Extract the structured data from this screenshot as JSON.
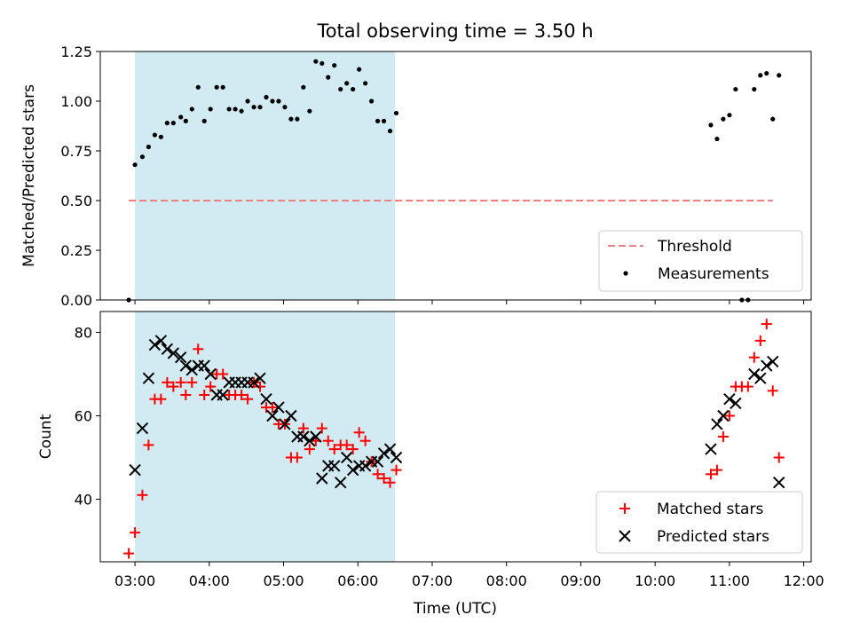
{
  "figure_title": "Total observing time = 3.50 h",
  "chart_data": [
    {
      "type": "scatter",
      "title": "Total observing time = 3.50 h",
      "xlabel": "",
      "ylabel": "Matched/Predicted stars",
      "x_ticklabels": [
        "03:00",
        "04:00",
        "05:00",
        "06:00",
        "07:00",
        "08:00",
        "09:00",
        "10:00",
        "11:00",
        "12:00"
      ],
      "y_ticks": [
        0.0,
        0.25,
        0.5,
        0.75,
        1.0,
        1.25
      ],
      "y_ticklabels": [
        "0.00",
        "0.25",
        "0.50",
        "0.75",
        "1.00",
        "1.25"
      ],
      "xlim": [
        "02:32",
        "12:06"
      ],
      "ylim": [
        0,
        1.25
      ],
      "shaded_span": {
        "start": "03:00",
        "end": "06:30",
        "color": "#add8e6"
      },
      "legend_position": "lower right",
      "threshold": {
        "name": "Threshold",
        "y": 0.5,
        "x_start": "02:55",
        "x_end": "11:35",
        "color": "#f08080",
        "style": "dashed"
      },
      "series": [
        {
          "name": "Measurements",
          "marker": "dot",
          "color": "#000000",
          "points": [
            [
              "02:55",
              0.0
            ],
            [
              "03:00",
              0.68
            ],
            [
              "03:06",
              0.72
            ],
            [
              "03:11",
              0.77
            ],
            [
              "03:16",
              0.83
            ],
            [
              "03:21",
              0.82
            ],
            [
              "03:26",
              0.89
            ],
            [
              "03:31",
              0.89
            ],
            [
              "03:37",
              0.92
            ],
            [
              "03:41",
              0.9
            ],
            [
              "03:46",
              0.96
            ],
            [
              "03:51",
              1.07
            ],
            [
              "03:56",
              0.9
            ],
            [
              "04:01",
              0.96
            ],
            [
              "04:06",
              1.07
            ],
            [
              "04:11",
              1.07
            ],
            [
              "04:16",
              0.96
            ],
            [
              "04:21",
              0.96
            ],
            [
              "04:26",
              0.95
            ],
            [
              "04:31",
              1.0
            ],
            [
              "04:36",
              0.97
            ],
            [
              "04:41",
              0.97
            ],
            [
              "04:46",
              1.02
            ],
            [
              "04:51",
              1.0
            ],
            [
              "04:56",
              1.0
            ],
            [
              "05:01",
              0.97
            ],
            [
              "05:06",
              0.91
            ],
            [
              "05:11",
              0.91
            ],
            [
              "05:16",
              1.07
            ],
            [
              "05:21",
              0.95
            ],
            [
              "05:26",
              1.2
            ],
            [
              "05:31",
              1.19
            ],
            [
              "05:36",
              1.12
            ],
            [
              "05:41",
              1.18
            ],
            [
              "05:46",
              1.06
            ],
            [
              "05:51",
              1.09
            ],
            [
              "05:56",
              1.06
            ],
            [
              "06:01",
              1.16
            ],
            [
              "06:06",
              1.09
            ],
            [
              "06:11",
              1.0
            ],
            [
              "06:16",
              0.9
            ],
            [
              "06:21",
              0.9
            ],
            [
              "06:26",
              0.85
            ],
            [
              "06:31",
              0.94
            ],
            [
              "10:45",
              0.88
            ],
            [
              "10:50",
              0.81
            ],
            [
              "10:55",
              0.91
            ],
            [
              "11:00",
              0.93
            ],
            [
              "11:05",
              1.06
            ],
            [
              "11:10",
              0.0
            ],
            [
              "11:15",
              0.0
            ],
            [
              "11:20",
              1.06
            ],
            [
              "11:25",
              1.13
            ],
            [
              "11:30",
              1.14
            ],
            [
              "11:35",
              0.91
            ],
            [
              "11:40",
              1.13
            ]
          ]
        }
      ]
    },
    {
      "type": "scatter",
      "xlabel": "Time (UTC)",
      "ylabel": "Count",
      "x_ticklabels": [
        "03:00",
        "04:00",
        "05:00",
        "06:00",
        "07:00",
        "08:00",
        "09:00",
        "10:00",
        "11:00",
        "12:00"
      ],
      "y_ticks": [
        40,
        60,
        80
      ],
      "y_ticklabels": [
        "40",
        "60",
        "80"
      ],
      "xlim": [
        "02:32",
        "12:06"
      ],
      "ylim": [
        25,
        85
      ],
      "shaded_span": {
        "start": "03:00",
        "end": "06:30",
        "color": "#add8e6"
      },
      "legend_position": "lower right",
      "series": [
        {
          "name": "Matched stars",
          "marker": "plus",
          "color": "#ff0000",
          "points": [
            [
              "02:55",
              27
            ],
            [
              "03:00",
              32
            ],
            [
              "03:06",
              41
            ],
            [
              "03:11",
              53
            ],
            [
              "03:16",
              64
            ],
            [
              "03:21",
              64
            ],
            [
              "03:26",
              68
            ],
            [
              "03:31",
              67
            ],
            [
              "03:37",
              68
            ],
            [
              "03:41",
              65
            ],
            [
              "03:46",
              68
            ],
            [
              "03:51",
              76
            ],
            [
              "03:56",
              65
            ],
            [
              "04:01",
              67
            ],
            [
              "04:06",
              70
            ],
            [
              "04:11",
              70
            ],
            [
              "04:16",
              65
            ],
            [
              "04:21",
              65
            ],
            [
              "04:26",
              65
            ],
            [
              "04:31",
              64
            ],
            [
              "04:36",
              68
            ],
            [
              "04:41",
              67
            ],
            [
              "04:46",
              62
            ],
            [
              "04:51",
              62
            ],
            [
              "04:56",
              58
            ],
            [
              "05:01",
              58
            ],
            [
              "05:06",
              50
            ],
            [
              "05:11",
              50
            ],
            [
              "05:16",
              57
            ],
            [
              "05:21",
              52
            ],
            [
              "05:26",
              54
            ],
            [
              "05:31",
              57
            ],
            [
              "05:36",
              54
            ],
            [
              "05:41",
              52
            ],
            [
              "05:46",
              53
            ],
            [
              "05:51",
              53
            ],
            [
              "05:56",
              52
            ],
            [
              "06:01",
              56
            ],
            [
              "06:06",
              54
            ],
            [
              "06:11",
              49
            ],
            [
              "06:16",
              46
            ],
            [
              "06:21",
              45
            ],
            [
              "06:26",
              44
            ],
            [
              "06:31",
              47
            ],
            [
              "10:45",
              46
            ],
            [
              "10:50",
              47
            ],
            [
              "10:55",
              55
            ],
            [
              "11:00",
              60
            ],
            [
              "11:05",
              67
            ],
            [
              "11:10",
              67
            ],
            [
              "11:15",
              67
            ],
            [
              "11:20",
              74
            ],
            [
              "11:25",
              78
            ],
            [
              "11:30",
              82
            ],
            [
              "11:35",
              66
            ],
            [
              "11:40",
              50
            ]
          ]
        },
        {
          "name": "Predicted stars",
          "marker": "x",
          "color": "#000000",
          "points": [
            [
              "03:00",
              47
            ],
            [
              "03:06",
              57
            ],
            [
              "03:11",
              69
            ],
            [
              "03:16",
              77
            ],
            [
              "03:21",
              78
            ],
            [
              "03:26",
              76
            ],
            [
              "03:31",
              75
            ],
            [
              "03:37",
              74
            ],
            [
              "03:41",
              72
            ],
            [
              "03:46",
              71
            ],
            [
              "03:51",
              72
            ],
            [
              "03:56",
              72
            ],
            [
              "04:01",
              70
            ],
            [
              "04:06",
              65
            ],
            [
              "04:11",
              65
            ],
            [
              "04:16",
              68
            ],
            [
              "04:21",
              68
            ],
            [
              "04:26",
              68
            ],
            [
              "04:31",
              68
            ],
            [
              "04:36",
              68
            ],
            [
              "04:41",
              69
            ],
            [
              "04:46",
              64
            ],
            [
              "04:51",
              60
            ],
            [
              "04:56",
              62
            ],
            [
              "05:01",
              58
            ],
            [
              "05:06",
              60
            ],
            [
              "05:11",
              55
            ],
            [
              "05:16",
              55
            ],
            [
              "05:21",
              54
            ],
            [
              "05:26",
              55
            ],
            [
              "05:31",
              45
            ],
            [
              "05:36",
              48
            ],
            [
              "05:41",
              48
            ],
            [
              "05:46",
              44
            ],
            [
              "05:51",
              50
            ],
            [
              "05:56",
              47
            ],
            [
              "06:01",
              48
            ],
            [
              "06:06",
              48
            ],
            [
              "06:11",
              49
            ],
            [
              "06:16",
              49
            ],
            [
              "06:21",
              51
            ],
            [
              "06:26",
              52
            ],
            [
              "06:31",
              50
            ],
            [
              "10:45",
              52
            ],
            [
              "10:50",
              58
            ],
            [
              "10:55",
              60
            ],
            [
              "11:00",
              64
            ],
            [
              "11:05",
              63
            ],
            [
              "11:20",
              70
            ],
            [
              "11:25",
              69
            ],
            [
              "11:30",
              72
            ],
            [
              "11:35",
              73
            ],
            [
              "11:40",
              44
            ]
          ]
        }
      ]
    }
  ]
}
